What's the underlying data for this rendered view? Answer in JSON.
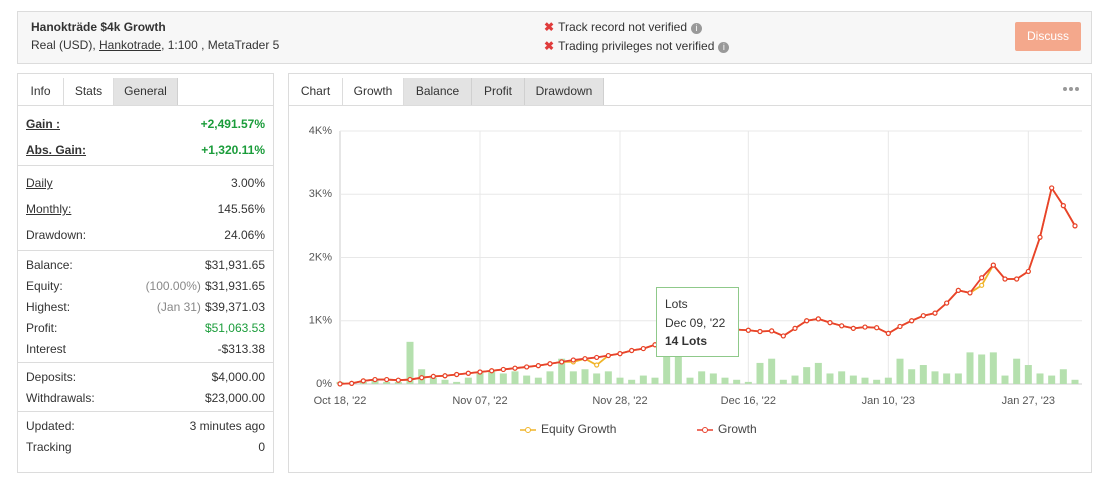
{
  "header": {
    "title": "Hanokträde $4k Growth",
    "account": [
      "Real (USD), ",
      "Hankotrade",
      ", 1:100 , MetaTrader 5"
    ],
    "status": [
      "Track record not verified",
      "Trading privileges not verified"
    ],
    "button": "Discuss"
  },
  "left_tabs": {
    "items": [
      "Info",
      "Stats",
      "General"
    ],
    "active": 1
  },
  "stats": [
    [
      {
        "label": "Gain :",
        "value": "+2,491.57%",
        "color": "#1a9c3a",
        "underline": true
      },
      {
        "label": "Abs. Gain:",
        "value": "+1,320.11%",
        "color": "#1a9c3a",
        "underline": true
      }
    ],
    [
      {
        "label": "Daily",
        "value": "3.00%",
        "underline": true
      },
      {
        "label": "Monthly:",
        "value": "145.56%",
        "underline": true
      },
      {
        "label": "Drawdown:",
        "value": "24.06%"
      }
    ],
    [
      {
        "label": "Balance:",
        "value": "$31,931.65"
      },
      {
        "label": "Equity:",
        "note": "(100.00%)",
        "value": "$31,931.65"
      },
      {
        "label": "Highest:",
        "note": "(Jan 31)",
        "value": "$39,371.03"
      },
      {
        "label": "Profit:",
        "value": "$51,063.53",
        "color": "#1a9c3a"
      },
      {
        "label": "Interest",
        "value": "-$313.38"
      }
    ],
    [
      {
        "label": "Deposits:",
        "value": "$4,000.00"
      },
      {
        "label": "Withdrawals:",
        "value": "$23,000.00"
      }
    ],
    [
      {
        "label": "Updated:",
        "value": "3 minutes ago"
      },
      {
        "label": "Tracking",
        "value": "0"
      }
    ]
  ],
  "chart_tabs": {
    "items": [
      "Chart",
      "Growth",
      "Balance",
      "Profit",
      "Drawdown"
    ],
    "active": 1
  },
  "chart_data": {
    "type": "line",
    "categories": [
      "Oct 18, '22",
      null,
      null,
      null,
      null,
      null,
      null,
      null,
      null,
      null,
      null,
      null,
      "Nov 07, '22",
      null,
      null,
      null,
      null,
      null,
      null,
      null,
      null,
      null,
      null,
      null,
      "Nov 28, '22",
      null,
      null,
      null,
      null,
      null,
      null,
      null,
      null,
      null,
      null,
      "Dec 16, '22",
      null,
      null,
      null,
      null,
      null,
      null,
      null,
      null,
      null,
      null,
      null,
      "Jan 10, '23",
      null,
      null,
      null,
      null,
      null,
      null,
      null,
      null,
      null,
      null,
      null,
      "Jan 27, '23",
      null,
      null,
      null,
      null
    ],
    "ylim": [
      0,
      4000
    ],
    "yticks": [
      {
        "value": 0,
        "label": "0%"
      },
      {
        "value": 1000,
        "label": "1K%"
      },
      {
        "value": 2000,
        "label": "2K%"
      },
      {
        "value": 3000,
        "label": "3K%"
      },
      {
        "value": 4000,
        "label": "4K%"
      }
    ],
    "grid": true,
    "series": [
      {
        "name": "Equity Growth",
        "color": "#f0b429",
        "values": [
          2,
          10,
          50,
          70,
          70,
          60,
          70,
          100,
          120,
          130,
          150,
          170,
          190,
          210,
          230,
          250,
          270,
          290,
          320,
          350,
          350,
          400,
          300,
          450,
          480,
          530,
          560,
          620,
          700,
          750,
          800,
          850,
          880,
          870,
          860,
          850,
          830,
          840,
          760,
          880,
          1000,
          1030,
          970,
          920,
          880,
          900,
          890,
          800,
          910,
          1000,
          1080,
          1120,
          1280,
          1480,
          1440,
          1560,
          1880,
          1660,
          1660,
          1780,
          2320,
          3100,
          2820,
          2500
        ]
      },
      {
        "name": "Growth",
        "color": "#e8412d",
        "values": [
          2,
          10,
          50,
          70,
          70,
          60,
          70,
          100,
          120,
          130,
          150,
          170,
          190,
          210,
          230,
          250,
          270,
          290,
          320,
          350,
          380,
          400,
          420,
          450,
          480,
          530,
          560,
          620,
          700,
          750,
          800,
          850,
          880,
          870,
          860,
          850,
          830,
          840,
          760,
          880,
          1000,
          1030,
          970,
          920,
          880,
          900,
          890,
          800,
          910,
          1000,
          1080,
          1120,
          1280,
          1480,
          1440,
          1680,
          1880,
          1660,
          1660,
          1780,
          2320,
          3100,
          2820,
          2500
        ]
      }
    ],
    "bars": {
      "name": "Lots",
      "color": "#b5e0ae",
      "axis": "y2",
      "values": [
        1,
        0,
        1,
        2,
        1,
        1,
        20,
        7,
        3,
        2,
        1,
        3,
        6,
        6,
        5,
        6,
        4,
        3,
        6,
        12,
        6,
        7,
        5,
        6,
        3,
        2,
        4,
        3,
        13,
        14,
        3,
        6,
        5,
        3,
        2,
        1,
        10,
        12,
        2,
        4,
        8,
        10,
        5,
        6,
        4,
        3,
        2,
        3,
        12,
        7,
        9,
        6,
        5,
        5,
        15,
        14,
        15,
        4,
        12,
        9,
        5,
        4,
        7,
        2
      ]
    },
    "y2lim": [
      0,
      120
    ],
    "tooltip": {
      "label": "Dec 09, '22",
      "value_label": "14 Lots"
    }
  }
}
